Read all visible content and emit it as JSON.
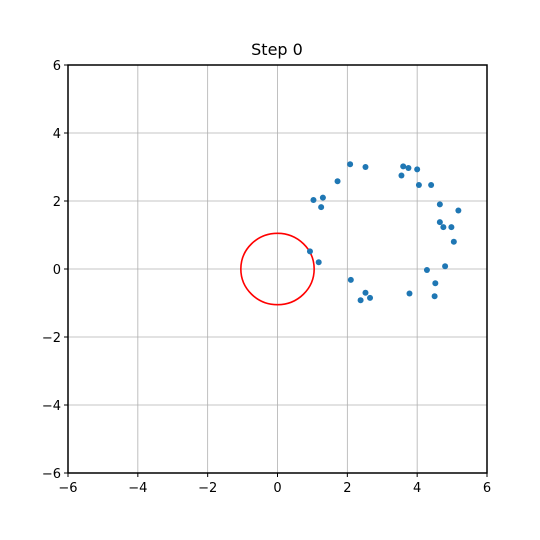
{
  "chart_data": {
    "type": "scatter",
    "title": "Step 0",
    "xlabel": "",
    "ylabel": "",
    "xlim": [
      -6,
      6
    ],
    "ylim": [
      -6,
      6
    ],
    "xticks": [
      -6,
      -4,
      -2,
      0,
      2,
      4,
      6
    ],
    "yticks": [
      -6,
      -4,
      -2,
      0,
      2,
      4,
      6
    ],
    "grid": true,
    "series": [
      {
        "color": "#1f77b4",
        "points": [
          [
            0.93,
            0.52
          ],
          [
            1.18,
            0.2
          ],
          [
            1.03,
            2.03
          ],
          [
            1.3,
            2.1
          ],
          [
            1.25,
            1.82
          ],
          [
            1.72,
            2.58
          ],
          [
            2.08,
            3.08
          ],
          [
            2.52,
            3.0
          ],
          [
            3.55,
            2.75
          ],
          [
            3.6,
            3.02
          ],
          [
            3.75,
            2.97
          ],
          [
            4.0,
            2.93
          ],
          [
            4.05,
            2.47
          ],
          [
            4.4,
            2.47
          ],
          [
            4.65,
            1.9
          ],
          [
            5.18,
            1.72
          ],
          [
            4.65,
            1.38
          ],
          [
            4.75,
            1.23
          ],
          [
            4.98,
            1.23
          ],
          [
            5.05,
            0.8
          ],
          [
            4.8,
            0.08
          ],
          [
            4.28,
            -0.03
          ],
          [
            4.52,
            -0.42
          ],
          [
            4.5,
            -0.8
          ],
          [
            3.78,
            -0.72
          ],
          [
            2.1,
            -0.32
          ],
          [
            2.52,
            -0.7
          ],
          [
            2.38,
            -0.92
          ],
          [
            2.65,
            -0.85
          ]
        ]
      }
    ],
    "shapes": [
      {
        "type": "circle",
        "center": [
          0,
          0
        ],
        "radius": 1.05,
        "color": "#ff0000"
      }
    ]
  }
}
